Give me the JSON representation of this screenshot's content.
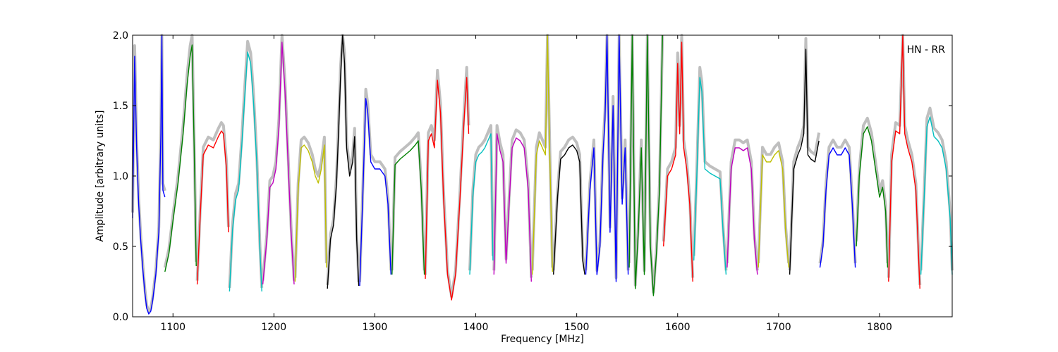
{
  "chart_data": {
    "type": "line",
    "title": "",
    "annotation": "HN - RR",
    "xlabel": "Frequency [MHz]",
    "ylabel": "Amplitude [arbitrary units]",
    "xlim": [
      1060,
      1872
    ],
    "ylim": [
      0.0,
      2.0
    ],
    "xticks": [
      1100,
      1200,
      1300,
      1400,
      1500,
      1600,
      1700,
      1800
    ],
    "yticks": [
      0.0,
      0.5,
      1.0,
      1.5,
      2.0
    ],
    "ytick_labels": [
      "0.0",
      "0.5",
      "1.0",
      "1.5",
      "2.0"
    ],
    "grid": false,
    "reference_color": "#bfbfbf",
    "series": [
      {
        "color": "#0000ff",
        "x": [
          1060,
          1062,
          1064,
          1066,
          1068,
          1070,
          1072,
          1074,
          1076,
          1078,
          1080,
          1083,
          1086,
          1088,
          1089,
          1090,
          1092
        ],
        "y": [
          0.7,
          1.85,
          1.2,
          0.8,
          0.55,
          0.35,
          0.18,
          0.06,
          0.02,
          0.04,
          0.12,
          0.3,
          0.6,
          1.3,
          2.0,
          0.9,
          0.85
        ]
      },
      {
        "color": "#008000",
        "x": [
          1092,
          1096,
          1100,
          1105,
          1110,
          1114,
          1117,
          1119,
          1121,
          1123
        ],
        "y": [
          0.32,
          0.45,
          0.68,
          0.95,
          1.3,
          1.65,
          1.85,
          1.93,
          1.2,
          0.36
        ]
      },
      {
        "color": "#ff0000",
        "x": [
          1124,
          1127,
          1130,
          1135,
          1140,
          1145,
          1148,
          1150,
          1153,
          1155
        ],
        "y": [
          0.23,
          0.72,
          1.15,
          1.22,
          1.2,
          1.28,
          1.32,
          1.3,
          1.05,
          0.6
        ]
      },
      {
        "color": "#00bfbf",
        "x": [
          1156,
          1159,
          1162,
          1165,
          1168,
          1171,
          1174,
          1177,
          1180,
          1183,
          1186,
          1188
        ],
        "y": [
          0.18,
          0.62,
          0.83,
          0.9,
          1.2,
          1.55,
          1.88,
          1.8,
          1.5,
          1.1,
          0.5,
          0.18
        ]
      },
      {
        "color": "#bf00bf",
        "x": [
          1189,
          1193,
          1196,
          1199,
          1202,
          1205,
          1208,
          1211,
          1214,
          1217,
          1220
        ],
        "y": [
          0.23,
          0.55,
          0.92,
          0.95,
          1.05,
          1.35,
          1.95,
          1.6,
          1.1,
          0.6,
          0.23
        ]
      },
      {
        "color": "#bfbf00",
        "x": [
          1221,
          1224,
          1227,
          1230,
          1234,
          1238,
          1241,
          1244,
          1247,
          1250,
          1252
        ],
        "y": [
          0.25,
          0.9,
          1.2,
          1.22,
          1.18,
          1.1,
          1.0,
          0.95,
          1.05,
          1.22,
          0.35
        ]
      },
      {
        "color": "#000000",
        "x": [
          1253,
          1256,
          1259,
          1262,
          1264,
          1266,
          1268,
          1270,
          1272,
          1275,
          1278,
          1280,
          1282,
          1284
        ],
        "y": [
          0.2,
          0.55,
          0.65,
          0.95,
          1.3,
          1.7,
          2.0,
          1.8,
          1.2,
          1.0,
          1.1,
          1.28,
          0.55,
          0.22
        ]
      },
      {
        "color": "#0000ff",
        "x": [
          1285,
          1288,
          1291,
          1293,
          1296,
          1300,
          1305,
          1310,
          1313,
          1316
        ],
        "y": [
          0.22,
          0.85,
          1.55,
          1.45,
          1.1,
          1.05,
          1.05,
          1.0,
          0.8,
          0.3
        ]
      },
      {
        "color": "#008000",
        "x": [
          1317,
          1320,
          1325,
          1330,
          1335,
          1340,
          1343,
          1346,
          1349
        ],
        "y": [
          0.3,
          1.08,
          1.12,
          1.15,
          1.18,
          1.22,
          1.25,
          0.9,
          0.3
        ]
      },
      {
        "color": "#ff0000",
        "x": [
          1350,
          1353,
          1356,
          1359,
          1362,
          1365,
          1368,
          1372,
          1376,
          1380,
          1384,
          1388,
          1391,
          1393
        ],
        "y": [
          0.27,
          1.25,
          1.3,
          1.2,
          1.68,
          1.45,
          0.85,
          0.3,
          0.12,
          0.3,
          0.8,
          1.35,
          1.7,
          1.3
        ]
      },
      {
        "color": "#00bfbf",
        "x": [
          1394,
          1397,
          1400,
          1403,
          1406,
          1409,
          1412,
          1415,
          1417
        ],
        "y": [
          0.3,
          0.85,
          1.1,
          1.15,
          1.17,
          1.2,
          1.25,
          1.3,
          0.4
        ]
      },
      {
        "color": "#bf00bf",
        "x": [
          1418,
          1421,
          1424,
          1427,
          1430,
          1433,
          1436,
          1440,
          1444,
          1448,
          1452,
          1455
        ],
        "y": [
          0.3,
          1.3,
          1.18,
          1.1,
          0.38,
          0.8,
          1.2,
          1.27,
          1.25,
          1.2,
          0.9,
          0.25
        ]
      },
      {
        "color": "#bfbf00",
        "x": [
          1456,
          1460,
          1463,
          1466,
          1469,
          1471,
          1473,
          1476
        ],
        "y": [
          0.3,
          1.15,
          1.25,
          1.2,
          1.15,
          2.0,
          1.25,
          0.32
        ]
      },
      {
        "color": "#000000",
        "x": [
          1477,
          1481,
          1484,
          1488,
          1492,
          1496,
          1500,
          1503,
          1506,
          1508
        ],
        "y": [
          0.3,
          0.85,
          1.12,
          1.15,
          1.2,
          1.22,
          1.18,
          1.1,
          0.4,
          0.3
        ]
      },
      {
        "color": "#0000ff",
        "x": [
          1509,
          1513,
          1517,
          1520,
          1523,
          1526,
          1528,
          1530,
          1533,
          1536,
          1539,
          1542,
          1545,
          1548,
          1551
        ],
        "y": [
          0.3,
          0.9,
          1.2,
          0.3,
          0.5,
          1.15,
          1.4,
          2.0,
          0.6,
          1.5,
          0.25,
          2.0,
          0.8,
          1.2,
          0.3
        ]
      },
      {
        "color": "#008000",
        "x": [
          1552,
          1555,
          1558,
          1561,
          1564,
          1567,
          1570,
          1573,
          1576,
          1579,
          1582,
          1585
        ],
        "y": [
          0.35,
          2.0,
          0.2,
          0.6,
          1.2,
          0.3,
          2.0,
          0.5,
          0.15,
          0.45,
          0.9,
          2.0
        ]
      },
      {
        "color": "#ff0000",
        "x": [
          1586,
          1590,
          1594,
          1598,
          1600,
          1602,
          1604,
          1606,
          1609,
          1612,
          1615
        ],
        "y": [
          0.5,
          1.0,
          1.05,
          1.15,
          1.8,
          1.3,
          1.95,
          1.2,
          1.05,
          0.8,
          0.25
        ]
      },
      {
        "color": "#00bfbf",
        "x": [
          1616,
          1619,
          1622,
          1624,
          1627,
          1632,
          1637,
          1642,
          1645,
          1648
        ],
        "y": [
          0.4,
          1.0,
          1.7,
          1.6,
          1.05,
          1.02,
          1.0,
          0.98,
          0.6,
          0.3
        ]
      },
      {
        "color": "#bf00bf",
        "x": [
          1649,
          1653,
          1657,
          1661,
          1665,
          1669,
          1673,
          1676,
          1679
        ],
        "y": [
          0.35,
          1.05,
          1.2,
          1.2,
          1.18,
          1.2,
          1.05,
          0.55,
          0.3
        ]
      },
      {
        "color": "#bfbf00",
        "x": [
          1680,
          1684,
          1688,
          1692,
          1696,
          1700,
          1704,
          1707,
          1710
        ],
        "y": [
          0.35,
          1.15,
          1.1,
          1.1,
          1.15,
          1.18,
          1.05,
          0.6,
          0.35
        ]
      },
      {
        "color": "#000000",
        "x": [
          1711,
          1715,
          1719,
          1722,
          1725,
          1727,
          1729,
          1732,
          1736,
          1740
        ],
        "y": [
          0.3,
          1.05,
          1.15,
          1.2,
          1.3,
          1.9,
          1.15,
          1.12,
          1.1,
          1.25
        ]
      },
      {
        "color": "#0000ff",
        "x": [
          1741,
          1744,
          1747,
          1750,
          1754,
          1758,
          1762,
          1766,
          1770,
          1773,
          1776
        ],
        "y": [
          0.35,
          0.5,
          0.9,
          1.15,
          1.2,
          1.15,
          1.15,
          1.2,
          1.15,
          0.8,
          0.35
        ]
      },
      {
        "color": "#008000",
        "x": [
          1777,
          1780,
          1784,
          1788,
          1792,
          1796,
          1800,
          1803,
          1806,
          1808
        ],
        "y": [
          0.5,
          1.0,
          1.3,
          1.35,
          1.25,
          1.05,
          0.85,
          0.92,
          0.75,
          0.35
        ]
      },
      {
        "color": "#ff0000",
        "x": [
          1809,
          1812,
          1816,
          1820,
          1823,
          1825,
          1828,
          1832,
          1836,
          1840
        ],
        "y": [
          0.25,
          1.1,
          1.32,
          1.3,
          2.0,
          1.3,
          1.2,
          1.1,
          0.9,
          0.2
        ]
      },
      {
        "color": "#00bfbf",
        "x": [
          1841,
          1844,
          1847,
          1850,
          1854,
          1858,
          1862,
          1866,
          1870,
          1872
        ],
        "y": [
          0.3,
          0.8,
          1.35,
          1.42,
          1.28,
          1.25,
          1.2,
          1.05,
          0.7,
          0.3
        ]
      }
    ]
  }
}
